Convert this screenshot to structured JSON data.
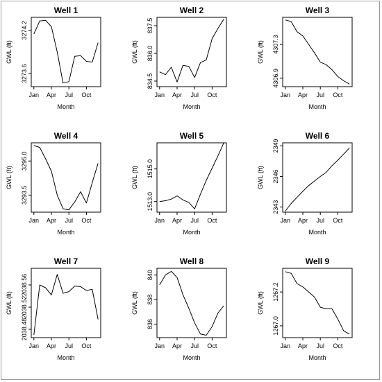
{
  "figure": {
    "background": "#ffffff",
    "line_color": "#000000"
  },
  "chart_data": [
    {
      "type": "line",
      "title": "Well 1",
      "xlabel": "Month",
      "ylabel": "GWL (ft)",
      "x": [
        1,
        2,
        3,
        4,
        5,
        6,
        7,
        8,
        9,
        10,
        11,
        12
      ],
      "x_tick_labels": [
        {
          "at": 1,
          "label": "Jan"
        },
        {
          "at": 4,
          "label": "Apr"
        },
        {
          "at": 7,
          "label": "Jul"
        },
        {
          "at": 10,
          "label": "Oct"
        }
      ],
      "y_ticks": [
        {
          "value": 3273.6,
          "label": "3273.6"
        },
        {
          "value": 3274.2,
          "label": "3274.2"
        }
      ],
      "ylim": [
        3273.42,
        3274.38
      ],
      "values": [
        3274.15,
        3274.33,
        3274.34,
        3274.25,
        3273.9,
        3273.47,
        3273.49,
        3273.84,
        3273.85,
        3273.77,
        3273.76,
        3274.03
      ]
    },
    {
      "type": "line",
      "title": "Well 2",
      "xlabel": "Month",
      "ylabel": "GWL (ft)",
      "x": [
        1,
        2,
        3,
        4,
        5,
        6,
        7,
        8,
        9,
        10,
        11,
        12
      ],
      "x_tick_labels": [
        {
          "at": 1,
          "label": "Jan"
        },
        {
          "at": 4,
          "label": "Apr"
        },
        {
          "at": 7,
          "label": "Jul"
        },
        {
          "at": 10,
          "label": "Oct"
        }
      ],
      "y_ticks": [
        {
          "value": 834.5,
          "label": "834.5"
        },
        {
          "value": 836.0,
          "label": "836.0"
        },
        {
          "value": 837.5,
          "label": "837.5"
        }
      ],
      "ylim": [
        834.2,
        837.95
      ],
      "values": [
        835.0,
        834.85,
        835.25,
        834.45,
        835.35,
        835.3,
        834.7,
        835.5,
        835.65,
        836.8,
        837.35,
        837.85
      ]
    },
    {
      "type": "line",
      "title": "Well 3",
      "xlabel": "Month",
      "ylabel": "GWL (ft)",
      "x": [
        1,
        2,
        3,
        4,
        5,
        6,
        7,
        8,
        9,
        10,
        11,
        12
      ],
      "x_tick_labels": [
        {
          "at": 1,
          "label": "Jan"
        },
        {
          "at": 4,
          "label": "Apr"
        },
        {
          "at": 7,
          "label": "Jul"
        },
        {
          "at": 10,
          "label": "Oct"
        }
      ],
      "y_ticks": [
        {
          "value": 4306.9,
          "label": "4306.9"
        },
        {
          "value": 4307.3,
          "label": "4307.3"
        }
      ],
      "ylim": [
        4306.8,
        4307.62
      ],
      "values": [
        4307.59,
        4307.57,
        4307.45,
        4307.4,
        4307.3,
        4307.2,
        4307.09,
        4307.06,
        4307.0,
        4306.92,
        4306.87,
        4306.83
      ]
    },
    {
      "type": "line",
      "title": "Well 4",
      "xlabel": "Month",
      "ylabel": "GWL (ft)",
      "x": [
        1,
        2,
        3,
        4,
        5,
        6,
        7,
        8,
        9,
        10,
        11,
        12
      ],
      "x_tick_labels": [
        {
          "at": 1,
          "label": "Jan"
        },
        {
          "at": 4,
          "label": "Apr"
        },
        {
          "at": 7,
          "label": "Jul"
        },
        {
          "at": 10,
          "label": "Oct"
        }
      ],
      "y_ticks": [
        {
          "value": 3293.5,
          "label": "3293.5"
        },
        {
          "value": 3295.0,
          "label": "3295.0"
        }
      ],
      "ylim": [
        3292.75,
        3295.8
      ],
      "values": [
        3295.68,
        3295.6,
        3295.1,
        3294.55,
        3293.5,
        3292.9,
        3292.85,
        3293.2,
        3293.65,
        3293.15,
        3294.05,
        3294.9
      ]
    },
    {
      "type": "line",
      "title": "Well 5",
      "xlabel": "Month",
      "ylabel": "GWL (ft)",
      "x": [
        1,
        2,
        3,
        4,
        5,
        6,
        7,
        8,
        9,
        10,
        11,
        12
      ],
      "x_tick_labels": [
        {
          "at": 1,
          "label": "Jan"
        },
        {
          "at": 4,
          "label": "Apr"
        },
        {
          "at": 7,
          "label": "Jul"
        },
        {
          "at": 10,
          "label": "Oct"
        }
      ],
      "y_ticks": [
        {
          "value": 1513.0,
          "label": "1513.0"
        },
        {
          "value": 1515.0,
          "label": "1515.0"
        }
      ],
      "ylim": [
        1512.35,
        1516.6
      ],
      "values": [
        1513.0,
        1513.05,
        1513.15,
        1513.35,
        1513.1,
        1512.95,
        1512.55,
        1513.45,
        1514.3,
        1515.05,
        1515.8,
        1516.6
      ]
    },
    {
      "type": "line",
      "title": "Well 6",
      "xlabel": "Month",
      "ylabel": "GWL (ft)",
      "x": [
        1,
        2,
        3,
        4,
        5,
        6,
        7,
        8,
        9,
        10,
        11,
        12
      ],
      "x_tick_labels": [
        {
          "at": 1,
          "label": "Jan"
        },
        {
          "at": 4,
          "label": "Apr"
        },
        {
          "at": 7,
          "label": "Jul"
        },
        {
          "at": 10,
          "label": "Oct"
        }
      ],
      "y_ticks": [
        {
          "value": 2343,
          "label": "2343"
        },
        {
          "value": 2346,
          "label": "2346"
        },
        {
          "value": 2349,
          "label": "2349"
        }
      ],
      "ylim": [
        2342.5,
        2349.3
      ],
      "values": [
        2342.6,
        2343.35,
        2343.95,
        2344.55,
        2345.1,
        2345.55,
        2346.0,
        2346.4,
        2347.05,
        2347.6,
        2348.2,
        2348.8
      ]
    },
    {
      "type": "line",
      "title": "Well 7",
      "xlabel": "Month",
      "ylabel": "GWL (ft)",
      "x": [
        1,
        2,
        3,
        4,
        5,
        6,
        7,
        8,
        9,
        10,
        11,
        12
      ],
      "x_tick_labels": [
        {
          "at": 1,
          "label": "Jan"
        },
        {
          "at": 4,
          "label": "Apr"
        },
        {
          "at": 7,
          "label": "Jul"
        },
        {
          "at": 10,
          "label": "Oct"
        }
      ],
      "y_ticks": [
        {
          "value": 2038.48,
          "label": "2038.48"
        },
        {
          "value": 2038.52,
          "label": "2038.52"
        },
        {
          "value": 2038.56,
          "label": "2038.56"
        }
      ],
      "ylim": [
        2038.465,
        2038.59
      ],
      "values": [
        2038.47,
        2038.56,
        2038.555,
        2038.542,
        2038.579,
        2038.545,
        2038.548,
        2038.558,
        2038.557,
        2038.55,
        2038.552,
        2038.498
      ]
    },
    {
      "type": "line",
      "title": "Well 8",
      "xlabel": "Month",
      "ylabel": "GWL (ft)",
      "x": [
        1,
        2,
        3,
        4,
        5,
        6,
        7,
        8,
        9,
        10,
        11,
        12
      ],
      "x_tick_labels": [
        {
          "at": 1,
          "label": "Jan"
        },
        {
          "at": 4,
          "label": "Apr"
        },
        {
          "at": 7,
          "label": "Jul"
        },
        {
          "at": 10,
          "label": "Oct"
        }
      ],
      "y_ticks": [
        {
          "value": 836,
          "label": "836"
        },
        {
          "value": 838,
          "label": "838"
        },
        {
          "value": 840,
          "label": "840"
        }
      ],
      "ylim": [
        834.9,
        840.55
      ],
      "values": [
        839.2,
        840.0,
        840.3,
        839.8,
        838.4,
        837.3,
        836.1,
        835.2,
        835.1,
        835.8,
        836.9,
        837.5
      ]
    },
    {
      "type": "line",
      "title": "Well 9",
      "xlabel": "Month",
      "ylabel": "GWL (ft)",
      "x": [
        1,
        2,
        3,
        4,
        5,
        6,
        7,
        8,
        9,
        10,
        11,
        12
      ],
      "x_tick_labels": [
        {
          "at": 1,
          "label": "Jan"
        },
        {
          "at": 4,
          "label": "Apr"
        },
        {
          "at": 7,
          "label": "Jul"
        },
        {
          "at": 10,
          "label": "Oct"
        }
      ],
      "y_ticks": [
        {
          "value": 1267.0,
          "label": "1267.0"
        },
        {
          "value": 1267.2,
          "label": "1267.2"
        }
      ],
      "ylim": [
        1266.93,
        1267.34
      ],
      "values": [
        1267.32,
        1267.31,
        1267.25,
        1267.23,
        1267.2,
        1267.17,
        1267.11,
        1267.1,
        1267.1,
        1267.04,
        1266.97,
        1266.95
      ]
    }
  ]
}
